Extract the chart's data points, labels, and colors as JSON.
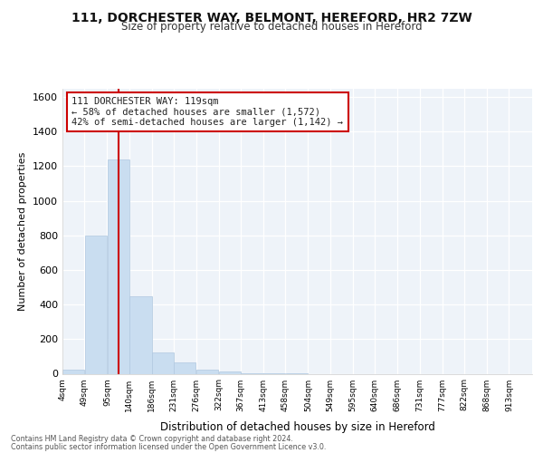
{
  "title_line1": "111, DORCHESTER WAY, BELMONT, HEREFORD, HR2 7ZW",
  "title_line2": "Size of property relative to detached houses in Hereford",
  "xlabel": "Distribution of detached houses by size in Hereford",
  "ylabel": "Number of detached properties",
  "footer_line1": "Contains HM Land Registry data © Crown copyright and database right 2024.",
  "footer_line2": "Contains public sector information licensed under the Open Government Licence v3.0.",
  "bin_edges": [
    4,
    49,
    95,
    140,
    186,
    231,
    276,
    322,
    367,
    413,
    458,
    504,
    549,
    595,
    640,
    686,
    731,
    777,
    822,
    868,
    913,
    960
  ],
  "bar_heights": [
    25,
    800,
    1240,
    450,
    125,
    65,
    25,
    15,
    5,
    2,
    1,
    0,
    0,
    0,
    0,
    0,
    0,
    0,
    0,
    0,
    0
  ],
  "bar_color": "#c9ddf0",
  "bar_edgecolor": "#b0c8e0",
  "property_size": 119,
  "redline_color": "#cc0000",
  "annotation_line1": "111 DORCHESTER WAY: 119sqm",
  "annotation_line2": "← 58% of detached houses are smaller (1,572)",
  "annotation_line3": "42% of semi-detached houses are larger (1,142) →",
  "annotation_box_edgecolor": "#cc0000",
  "annotation_box_facecolor": "#ffffff",
  "ylim": [
    0,
    1650
  ],
  "yticks": [
    0,
    200,
    400,
    600,
    800,
    1000,
    1200,
    1400,
    1600
  ],
  "xtick_labels": [
    "4sqm",
    "49sqm",
    "95sqm",
    "140sqm",
    "186sqm",
    "231sqm",
    "276sqm",
    "322sqm",
    "367sqm",
    "413sqm",
    "458sqm",
    "504sqm",
    "549sqm",
    "595sqm",
    "640sqm",
    "686sqm",
    "731sqm",
    "777sqm",
    "822sqm",
    "868sqm",
    "913sqm"
  ],
  "xlim_min": 4,
  "xlim_max": 960,
  "background_color": "#ffffff",
  "plot_bg_color": "#eef3f9"
}
